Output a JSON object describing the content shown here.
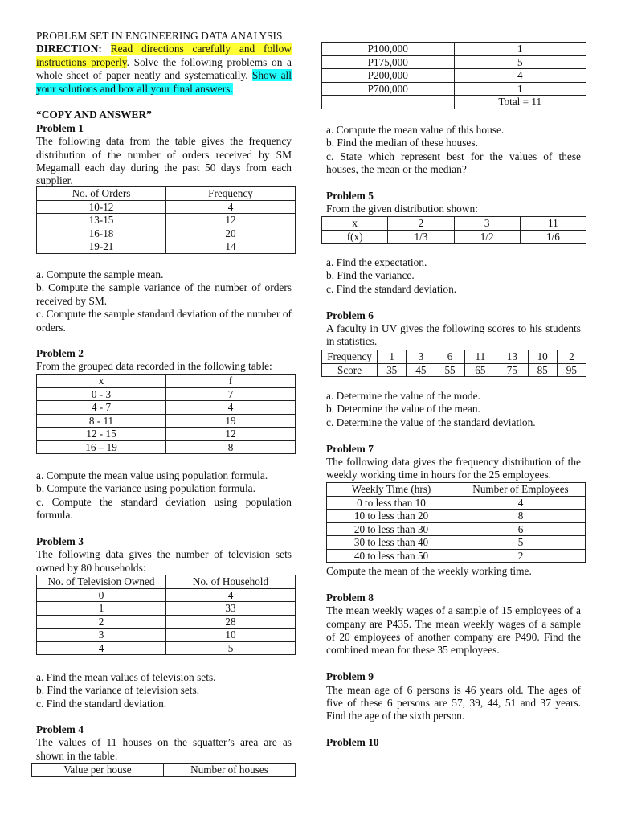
{
  "header": {
    "title": "PROBLEM SET IN ENGINEERING DATA ANALYSIS",
    "direction_label": "DIRECTION:",
    "direction_hl1": "Read directions carefully and follow instructions properly",
    "direction_mid": ". Solve the following problems on a whole sheet of paper neatly and systematically. ",
    "direction_hl2": "Show all your solutions and box all your final answers.",
    "copy": "“COPY AND ANSWER”",
    "highlight_colors": {
      "yellow": "#ffff33",
      "cyan": "#22ffff"
    }
  },
  "p1": {
    "title": "Problem 1",
    "text": "The following data from the table gives the frequency distribution of the number of orders received by SM Megamall each day during the past 50 days from each supplier.",
    "table": [
      [
        "No. of Orders",
        "Frequency"
      ],
      [
        "10-12",
        "4"
      ],
      [
        "13-15",
        "12"
      ],
      [
        "16-18",
        "20"
      ],
      [
        "19-21",
        "14"
      ]
    ],
    "a": "a. Compute the sample mean.",
    "b": "b. Compute the sample variance of the number of orders received by SM.",
    "c": "c. Compute the sample standard deviation of the number of orders."
  },
  "p2": {
    "title": "Problem 2",
    "text": "From the grouped data recorded in the following table:",
    "table": [
      [
        "x",
        "f"
      ],
      [
        "0 - 3",
        "7"
      ],
      [
        "4 - 7",
        "4"
      ],
      [
        "8 - 11",
        "19"
      ],
      [
        "12 - 15",
        "12"
      ],
      [
        "16 – 19",
        "8"
      ]
    ],
    "a": "a. Compute the mean value using population formula.",
    "b": "b. Compute the variance using population formula.",
    "c": "c. Compute the standard deviation using population formula."
  },
  "p3": {
    "title": "Problem 3",
    "text": "The following data gives the number of television sets owned by 80 households:",
    "table": [
      [
        "No. of Television Owned",
        "No. of Household"
      ],
      [
        "0",
        "4"
      ],
      [
        "1",
        "33"
      ],
      [
        "2",
        "28"
      ],
      [
        "3",
        "10"
      ],
      [
        "4",
        "5"
      ]
    ],
    "a": "a. Find the mean values of television sets.",
    "b": "b. Find the variance of television sets.",
    "c": "c. Find the standard deviation."
  },
  "p4": {
    "title": "Problem 4",
    "text": "The values of 11 houses on the squatter’s area are as shown in the table:",
    "table_head": [
      [
        "Value per house",
        "Number of houses"
      ]
    ],
    "table": [
      [
        "P100,000",
        "1"
      ],
      [
        "P175,000",
        "5"
      ],
      [
        "P200,000",
        "4"
      ],
      [
        "P700,000",
        "1"
      ],
      [
        "",
        "Total = 11"
      ]
    ],
    "a": "a. Compute the mean value of this house.",
    "b": "b. Find the median of these houses.",
    "c": "c. State which represent best for the values of these houses, the mean or the median?"
  },
  "p5": {
    "title": "Problem 5",
    "text": "From the given distribution shown:",
    "table": [
      [
        "x",
        "2",
        "3",
        "11"
      ],
      [
        "f(x)",
        "1/3",
        "1/2",
        "1/6"
      ]
    ],
    "a": "a. Find the expectation.",
    "b": "b. Find the variance.",
    "c": "c. Find the standard deviation."
  },
  "p6": {
    "title": "Problem 6",
    "text": "A faculty in UV gives the following scores to his students in statistics.",
    "table": [
      [
        "Frequency",
        "1",
        "3",
        "6",
        "11",
        "13",
        "10",
        "2"
      ],
      [
        "Score",
        "35",
        "45",
        "55",
        "65",
        "75",
        "85",
        "95"
      ]
    ],
    "a": "a. Determine the value of the mode.",
    "b": "b. Determine the value of the mean.",
    "c": "c. Determine the value of the standard deviation."
  },
  "p7": {
    "title": "Problem 7",
    "text": "The following data gives the frequency distribution of the weekly working time in hours for the 25 employees.",
    "table": [
      [
        "Weekly Time (hrs)",
        "Number of Employees"
      ],
      [
        "0 to less than 10",
        "4"
      ],
      [
        "10 to less than 20",
        "8"
      ],
      [
        "20 to less than 30",
        "6"
      ],
      [
        "30 to less than 40",
        "5"
      ],
      [
        "40 to less than 50",
        "2"
      ]
    ],
    "after": "Compute the mean of the weekly working time."
  },
  "p8": {
    "title": "Problem 8",
    "text": "The mean weekly wages of a sample of 15 employees of a company are P435. The mean weekly wages of a sample of 20 employees of another company are P490. Find the combined mean for these 35 employees."
  },
  "p9": {
    "title": "Problem 9",
    "text": "The mean age of 6 persons is 46 years old. The ages of five of these 6 persons are 57, 39, 44, 51 and 37 years. Find the age of the sixth person."
  },
  "p10": {
    "title": "Problem 10"
  }
}
